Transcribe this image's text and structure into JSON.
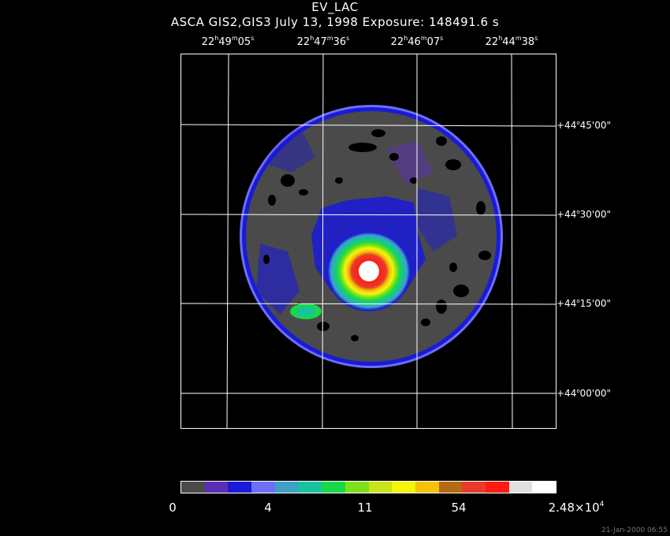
{
  "header": {
    "title": "EV_LAC",
    "subtitle": "ASCA GIS2,GIS3 July 13, 1998 Exposure: 148491.6 s"
  },
  "ra_labels": [
    {
      "h": "22",
      "m": "49",
      "s": "05"
    },
    {
      "h": "22",
      "m": "47",
      "s": "36"
    },
    {
      "h": "22",
      "m": "46",
      "s": "07"
    },
    {
      "h": "22",
      "m": "44",
      "s": "38"
    }
  ],
  "dec_labels": [
    {
      "d": "+44",
      "arcmin": "45",
      "arcsec": "00"
    },
    {
      "d": "+44",
      "arcmin": "30",
      "arcsec": "00"
    },
    {
      "d": "+44",
      "arcmin": "15",
      "arcsec": "00"
    },
    {
      "d": "+44",
      "arcmin": "00",
      "arcsec": "00"
    }
  ],
  "colorbar": {
    "colors": [
      "#4a4a4a",
      "#5b2fb5",
      "#1a1ad8",
      "#6e6ef5",
      "#3f9fc4",
      "#18c2a0",
      "#19d84a",
      "#7ee01c",
      "#c9e41a",
      "#f5f50a",
      "#f5c20a",
      "#b36a12",
      "#e83a2a",
      "#ff1a10",
      "#e0e0e0",
      "#ffffff"
    ],
    "ticks": [
      "0",
      "4",
      "11",
      "54"
    ],
    "max_label_mantissa": "2.48×10",
    "max_label_exponent": "4"
  },
  "timestamp": "21-Jan-2000 06:55"
}
